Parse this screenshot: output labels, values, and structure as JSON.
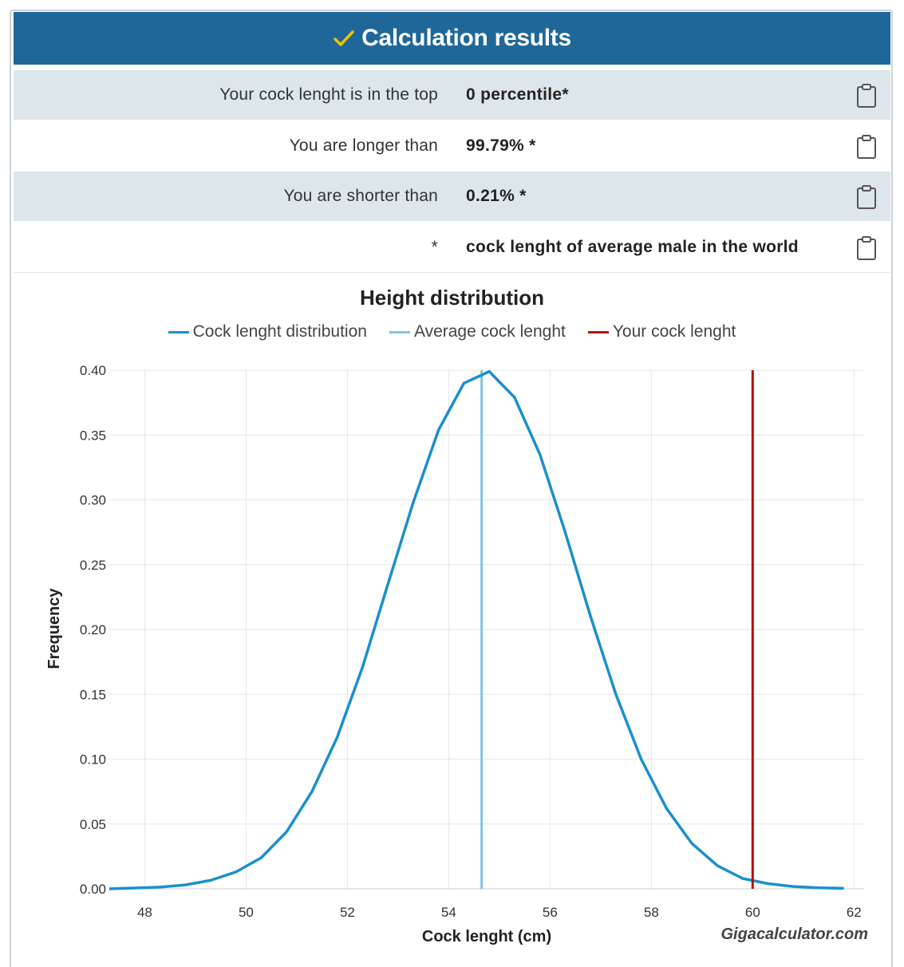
{
  "header": {
    "title": "Calculation results"
  },
  "results": [
    {
      "label": "Your cock lenght is in the top",
      "value": "0 percentile*"
    },
    {
      "label": "You are longer than",
      "value": "99.79% *"
    },
    {
      "label": "You are shorter than",
      "value": "0.21% *"
    },
    {
      "label": "*",
      "value": "cock lenght of average male in the world"
    }
  ],
  "colors": {
    "header": "#1f6798",
    "distribution": "#1a8fcf",
    "average": "#7ec4e3",
    "yours": "#b0120a"
  },
  "chart_data": {
    "type": "line",
    "title": "Height distribution",
    "xlabel": "Cock lenght (cm)",
    "ylabel": "Frequency",
    "xlim": [
      47.3,
      62.2
    ],
    "ylim": [
      0,
      0.4
    ],
    "xticks": [
      48,
      50,
      52,
      54,
      56,
      58,
      60,
      62
    ],
    "yticks": [
      0,
      0.05,
      0.1,
      0.15,
      0.2,
      0.25,
      0.3,
      0.35,
      0.4
    ],
    "ytick_labels": [
      "0.00",
      "0.05",
      "0.10",
      "0.15",
      "0.20",
      "0.25",
      "0.30",
      "0.35",
      "0.40"
    ],
    "legend": [
      "Cock lenght distribution",
      "Average cock lenght",
      "Your cock lenght"
    ],
    "series": [
      {
        "name": "Cock lenght distribution",
        "x": [
          47.3,
          47.8,
          48.3,
          48.8,
          49.3,
          49.8,
          50.3,
          50.8,
          51.3,
          51.8,
          52.3,
          52.8,
          53.3,
          53.8,
          54.3,
          54.8,
          55.3,
          55.8,
          56.3,
          56.8,
          57.3,
          57.8,
          58.3,
          58.8,
          59.3,
          59.8,
          60.3,
          60.8,
          61.3,
          61.8
        ],
        "y": [
          0.0,
          0.0006,
          0.0013,
          0.003,
          0.0065,
          0.013,
          0.024,
          0.044,
          0.075,
          0.117,
          0.171,
          0.235,
          0.298,
          0.354,
          0.39,
          0.399,
          0.379,
          0.335,
          0.275,
          0.21,
          0.15,
          0.1,
          0.062,
          0.035,
          0.018,
          0.008,
          0.004,
          0.0018,
          0.0008,
          0.0004
        ]
      }
    ],
    "average_x": 54.65,
    "your_x": 60.0
  },
  "credit": "Gigacalculator.com"
}
